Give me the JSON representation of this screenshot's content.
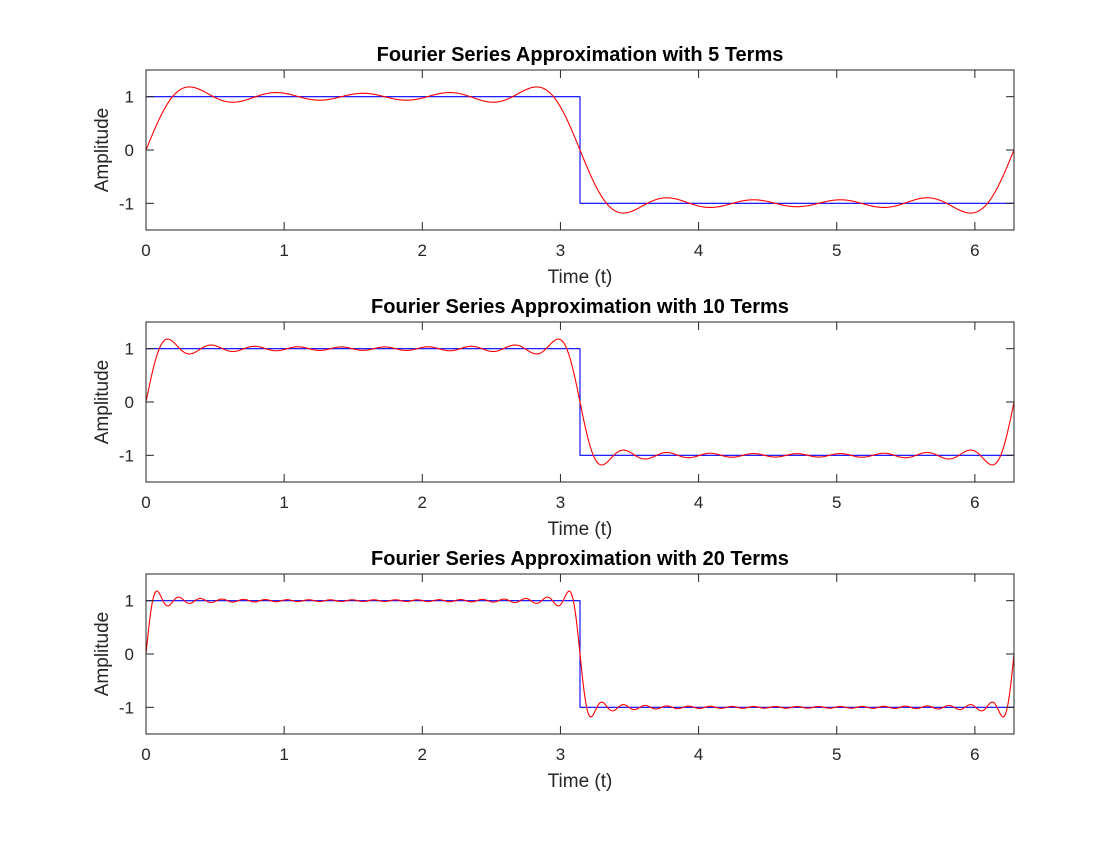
{
  "figure": {
    "background": "#ffffff"
  },
  "chart_data": [
    {
      "type": "line",
      "title": "Fourier Series Approximation with 5 Terms",
      "xlabel": "Time (t)",
      "ylabel": "Amplitude",
      "xlim": [
        0,
        6.2832
      ],
      "ylim": [
        -1.5,
        1.5
      ],
      "xticks": [
        0,
        1,
        2,
        3,
        4,
        5,
        6
      ],
      "yticks": [
        -1,
        0,
        1
      ],
      "grid": false,
      "series": [
        {
          "role": "square-wave",
          "color": "#0000ff",
          "x": [
            0,
            3.1416,
            3.1416,
            6.2832
          ],
          "y": [
            1,
            1,
            -1,
            -1
          ]
        },
        {
          "role": "fourier-approximation",
          "color": "#ff0000",
          "terms": 5
        }
      ]
    },
    {
      "type": "line",
      "title": "Fourier Series Approximation with 10 Terms",
      "xlabel": "Time (t)",
      "ylabel": "Amplitude",
      "xlim": [
        0,
        6.2832
      ],
      "ylim": [
        -1.5,
        1.5
      ],
      "xticks": [
        0,
        1,
        2,
        3,
        4,
        5,
        6
      ],
      "yticks": [
        -1,
        0,
        1
      ],
      "grid": false,
      "series": [
        {
          "role": "square-wave",
          "color": "#0000ff",
          "x": [
            0,
            3.1416,
            3.1416,
            6.2832
          ],
          "y": [
            1,
            1,
            -1,
            -1
          ]
        },
        {
          "role": "fourier-approximation",
          "color": "#ff0000",
          "terms": 10
        }
      ]
    },
    {
      "type": "line",
      "title": "Fourier Series Approximation with 20 Terms",
      "xlabel": "Time (t)",
      "ylabel": "Amplitude",
      "xlim": [
        0,
        6.2832
      ],
      "ylim": [
        -1.5,
        1.5
      ],
      "xticks": [
        0,
        1,
        2,
        3,
        4,
        5,
        6
      ],
      "yticks": [
        -1,
        0,
        1
      ],
      "grid": false,
      "series": [
        {
          "role": "square-wave",
          "color": "#0000ff",
          "x": [
            0,
            3.1416,
            3.1416,
            6.2832
          ],
          "y": [
            1,
            1,
            -1,
            -1
          ]
        },
        {
          "role": "fourier-approximation",
          "color": "#ff0000",
          "terms": 20
        }
      ]
    }
  ]
}
